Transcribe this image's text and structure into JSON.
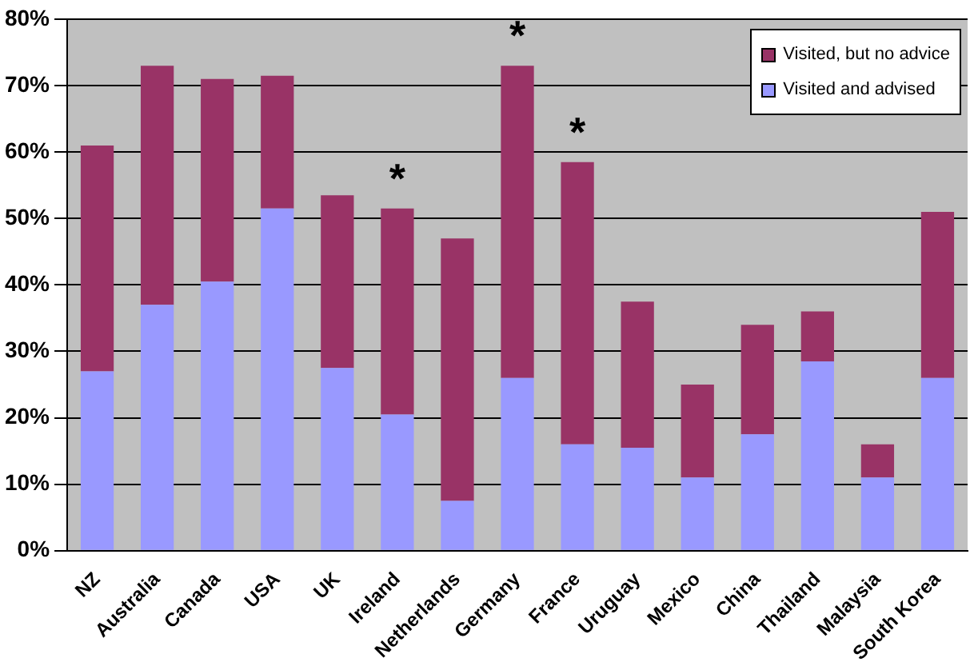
{
  "chart_data": {
    "type": "bar",
    "stacked": true,
    "categories": [
      "NZ",
      "Australia",
      "Canada",
      "USA",
      "UK",
      "Ireland",
      "Netherlands",
      "Germany",
      "France",
      "Uruguay",
      "Mexico",
      "China",
      "Thailand",
      "Malaysia",
      "South Korea"
    ],
    "series": [
      {
        "name": "Visited and advised",
        "color": "#9999ff",
        "values": [
          27,
          37,
          40.5,
          51.5,
          27.5,
          20.5,
          7.5,
          26,
          16,
          15.5,
          11,
          17.5,
          28.5,
          11,
          26
        ]
      },
      {
        "name": "Visited, but no advice",
        "color": "#993366",
        "values": [
          34,
          36,
          30.5,
          20,
          26,
          31,
          39.5,
          47,
          42.5,
          22,
          14,
          16.5,
          7.5,
          5,
          25
        ]
      }
    ],
    "ylim": [
      0,
      80
    ],
    "yticks": [
      {
        "value": 0,
        "label": "0%"
      },
      {
        "value": 10,
        "label": "10%"
      },
      {
        "value": 20,
        "label": "20%"
      },
      {
        "value": 30,
        "label": "30%"
      },
      {
        "value": 40,
        "label": "40%"
      },
      {
        "value": 50,
        "label": "50%"
      },
      {
        "value": 60,
        "label": "60%"
      },
      {
        "value": 70,
        "label": "70%"
      },
      {
        "value": 80,
        "label": "80%"
      }
    ],
    "grid": "y",
    "legend": "top right",
    "annotations": [
      {
        "text": "*",
        "x": "Ireland",
        "y": 51.5
      },
      {
        "text": "*",
        "x": "Germany",
        "y": 73
      },
      {
        "text": "*",
        "x": "France",
        "y": 58.5
      }
    ]
  }
}
